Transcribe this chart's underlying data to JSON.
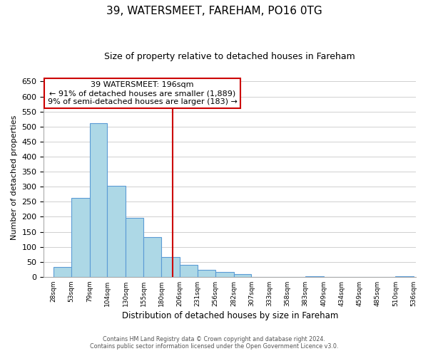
{
  "title": "39, WATERSMEET, FAREHAM, PO16 0TG",
  "subtitle": "Size of property relative to detached houses in Fareham",
  "xlabel": "Distribution of detached houses by size in Fareham",
  "ylabel": "Number of detached properties",
  "bar_edges": [
    28,
    53,
    79,
    104,
    130,
    155,
    180,
    206,
    231,
    256,
    282,
    307,
    333,
    358,
    383,
    409,
    434,
    459,
    485,
    510,
    536
  ],
  "bar_heights": [
    33,
    263,
    512,
    303,
    197,
    132,
    65,
    40,
    24,
    15,
    8,
    0,
    0,
    0,
    2,
    0,
    0,
    0,
    0,
    2
  ],
  "bar_color": "#add8e6",
  "bar_edge_color": "#5b9bd5",
  "vline_x": 196,
  "vline_color": "#cc0000",
  "annotation_title": "39 WATERSMEET: 196sqm",
  "annotation_line1": "← 91% of detached houses are smaller (1,889)",
  "annotation_line2": "9% of semi-detached houses are larger (183) →",
  "annotation_box_color": "#ffffff",
  "annotation_box_edge_color": "#cc0000",
  "tick_labels": [
    "28sqm",
    "53sqm",
    "79sqm",
    "104sqm",
    "130sqm",
    "155sqm",
    "180sqm",
    "206sqm",
    "231sqm",
    "256sqm",
    "282sqm",
    "307sqm",
    "333sqm",
    "358sqm",
    "383sqm",
    "409sqm",
    "434sqm",
    "459sqm",
    "485sqm",
    "510sqm",
    "536sqm"
  ],
  "ylim": [
    0,
    660
  ],
  "yticks": [
    0,
    50,
    100,
    150,
    200,
    250,
    300,
    350,
    400,
    450,
    500,
    550,
    600,
    650
  ],
  "footnote1": "Contains HM Land Registry data © Crown copyright and database right 2024.",
  "footnote2": "Contains public sector information licensed under the Open Government Licence v3.0.",
  "bg_color": "#ffffff",
  "grid_color": "#d0d0d0"
}
